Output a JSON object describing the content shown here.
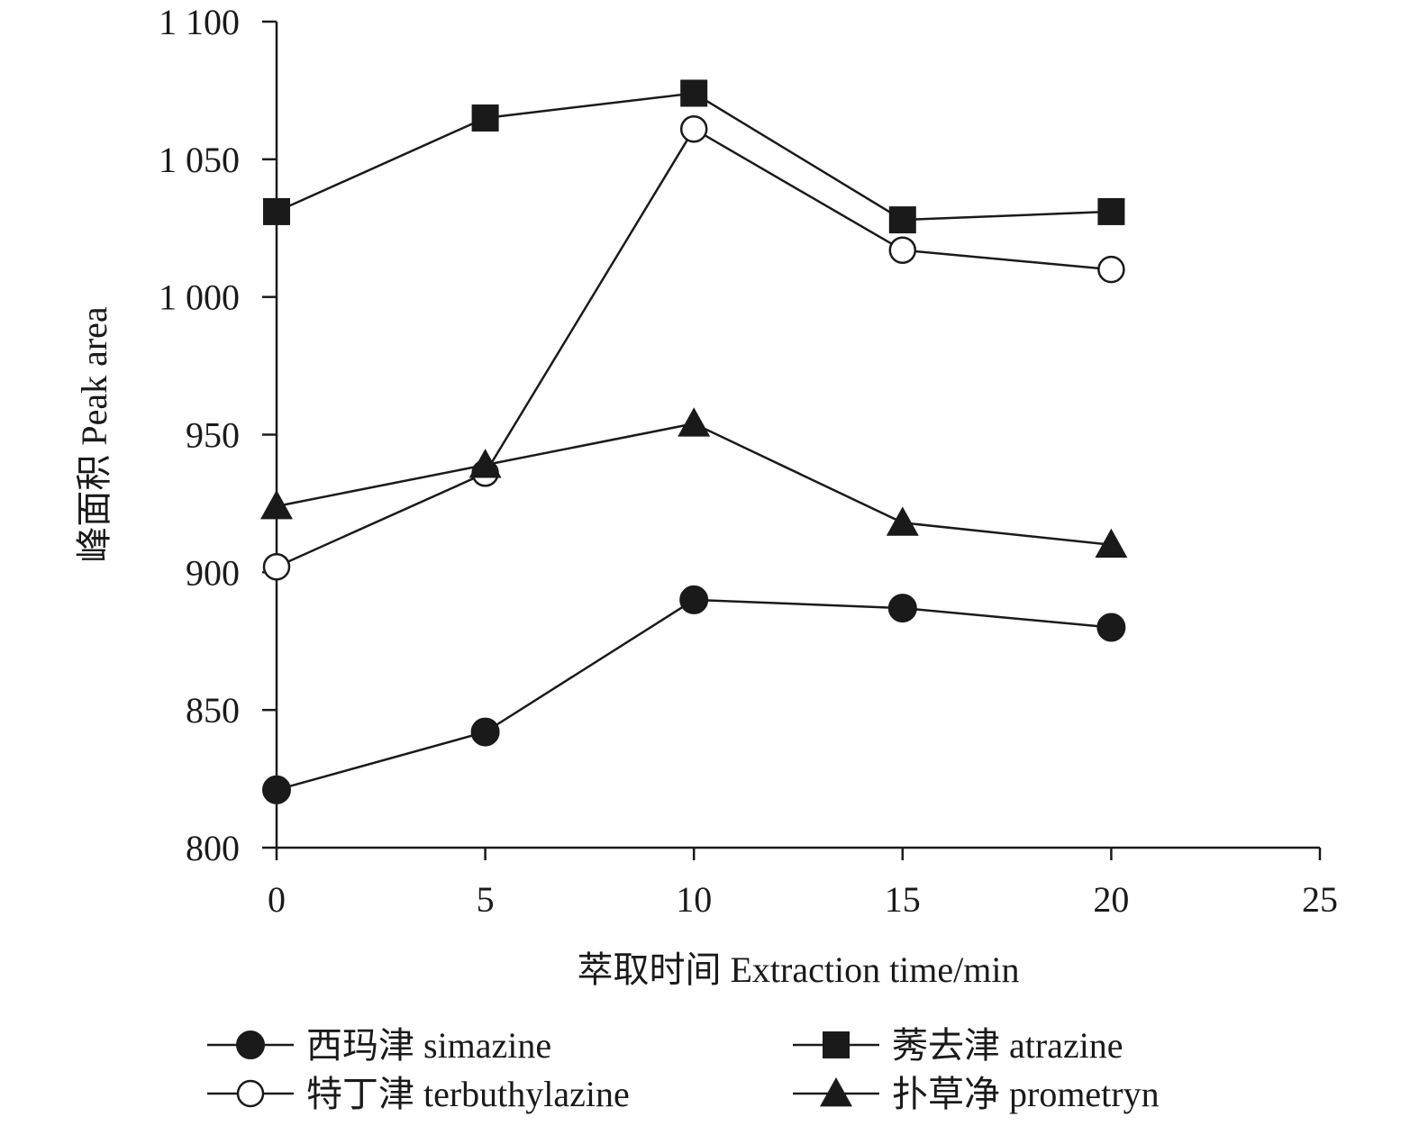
{
  "chart_data": {
    "type": "line",
    "title": "",
    "xlabel": "萃取时间 Extraction time/min",
    "ylabel": "峰面积 Peak area",
    "xlim": [
      0,
      25
    ],
    "ylim": [
      800,
      1100
    ],
    "x_ticks": [
      "0",
      "5",
      "10",
      "15",
      "20",
      "25"
    ],
    "y_ticks": [
      "800",
      "850",
      "900",
      "950",
      "1 000",
      "1 050",
      "1 100"
    ],
    "x": [
      0,
      5,
      10,
      15,
      20
    ],
    "grid": false,
    "legend_position": "bottom",
    "series": [
      {
        "name": "西玛津 simazine",
        "marker": "filled-circle",
        "values": [
          821,
          842,
          890,
          887,
          880
        ]
      },
      {
        "name": "莠去津 atrazine",
        "marker": "filled-square",
        "values": [
          1031,
          1065,
          1074,
          1028,
          1031
        ]
      },
      {
        "name": "特丁津 terbuthylazine",
        "marker": "open-circle",
        "values": [
          902,
          936,
          1061,
          1017,
          1010
        ]
      },
      {
        "name": "扑草净 prometryn",
        "marker": "filled-triangle",
        "values": [
          924,
          939,
          954,
          918,
          910
        ]
      }
    ],
    "colors": {
      "line": "#1a1a1a",
      "marker_fill": "#1a1a1a",
      "open_fill": "#ffffff"
    }
  }
}
